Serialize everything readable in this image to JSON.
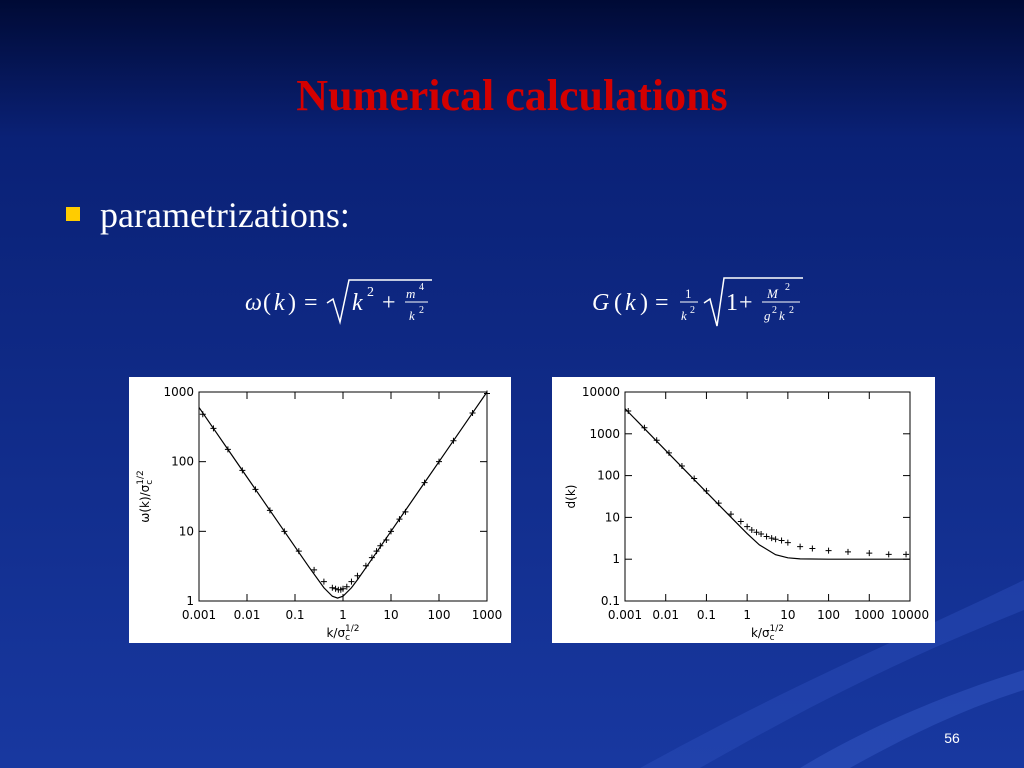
{
  "title": "Numerical calculations",
  "bullet": "parametrizations:",
  "slide_number": "56",
  "formulas": [
    {
      "parts": [
        "ω",
        "(",
        "k",
        ")",
        "=",
        "k",
        "2",
        "+",
        "m",
        "4",
        "k",
        "2"
      ]
    },
    {
      "parts": [
        "G",
        "(",
        "k",
        ")",
        "=",
        "1",
        "k",
        "2",
        "1",
        "+",
        "M",
        "2",
        "g",
        "2",
        "k",
        "2"
      ]
    }
  ],
  "chart_data": [
    {
      "type": "line",
      "xlabel": {
        "text": "k/σ",
        "sub": "c",
        "sup": "1/2"
      },
      "ylabel": {
        "text": "ω(k)/σ",
        "sub": "c",
        "sup": "1/2"
      },
      "log_x": true,
      "log_y": true,
      "xlim": [
        0.001,
        1000
      ],
      "xticks": [
        0.001,
        0.01,
        0.1,
        1,
        10,
        100,
        1000
      ],
      "ylim": [
        1,
        1000
      ],
      "yticks": [
        1,
        10,
        100,
        1000
      ],
      "series": [
        {
          "style": "line",
          "color": "#000000",
          "x": [
            0.001,
            0.002,
            0.005,
            0.01,
            0.02,
            0.05,
            0.1,
            0.2,
            0.4,
            0.6,
            0.77,
            1,
            1.5,
            2,
            3,
            5,
            10,
            20,
            50,
            100,
            200,
            500,
            1000
          ],
          "values": [
            600,
            300,
            120,
            60,
            30,
            12,
            6.0,
            3.01,
            1.55,
            1.17,
            1.1,
            1.17,
            1.55,
            2.02,
            3.01,
            5.0,
            10,
            20,
            50,
            100,
            200,
            500,
            1000
          ]
        },
        {
          "style": "markers",
          "color": "#000000",
          "x": [
            0.0012,
            0.002,
            0.004,
            0.008,
            0.015,
            0.03,
            0.06,
            0.12,
            0.25,
            0.4,
            0.6,
            0.7,
            0.8,
            0.9,
            1,
            1.2,
            1.5,
            2,
            3,
            4,
            5,
            6,
            8,
            10,
            15,
            20,
            50,
            100,
            200,
            500,
            1000
          ],
          "values": [
            480,
            300,
            150,
            75,
            40,
            20,
            10,
            5.2,
            2.8,
            1.9,
            1.55,
            1.5,
            1.45,
            1.45,
            1.5,
            1.6,
            1.9,
            2.3,
            3.2,
            4.2,
            5.2,
            6.2,
            7.5,
            10,
            15,
            19,
            50,
            100,
            200,
            500,
            950
          ]
        }
      ]
    },
    {
      "type": "line",
      "xlabel": {
        "text": "k/σ",
        "sub": "c",
        "sup": "1/2"
      },
      "ylabel": {
        "text": "d(k)"
      },
      "log_x": true,
      "log_y": true,
      "xlim": [
        0.001,
        10000
      ],
      "xticks": [
        0.001,
        0.01,
        0.1,
        1,
        10,
        100,
        1000,
        10000
      ],
      "ylim": [
        0.1,
        10000
      ],
      "yticks": [
        0.1,
        1,
        10,
        100,
        1000,
        10000
      ],
      "series": [
        {
          "style": "line",
          "color": "#000000",
          "x": [
            0.001,
            0.01,
            0.1,
            0.5,
            1,
            2,
            5,
            10,
            20,
            100,
            1000,
            10000
          ],
          "values": [
            4000,
            400,
            40,
            8.1,
            4.1,
            2.2,
            1.28,
            1.08,
            1.02,
            1,
            1,
            1
          ]
        },
        {
          "style": "markers",
          "color": "#000000",
          "x": [
            0.0012,
            0.003,
            0.006,
            0.012,
            0.025,
            0.05,
            0.1,
            0.2,
            0.4,
            0.7,
            1,
            1.3,
            1.7,
            2.2,
            3,
            4,
            5,
            7,
            10,
            20,
            40,
            100,
            300,
            1000,
            3000,
            8000
          ],
          "values": [
            3500,
            1400,
            700,
            350,
            170,
            85,
            43,
            22,
            12,
            8,
            6,
            5,
            4.4,
            4,
            3.5,
            3.2,
            3,
            2.8,
            2.5,
            2.0,
            1.8,
            1.6,
            1.5,
            1.4,
            1.3,
            1.3
          ]
        }
      ]
    }
  ]
}
